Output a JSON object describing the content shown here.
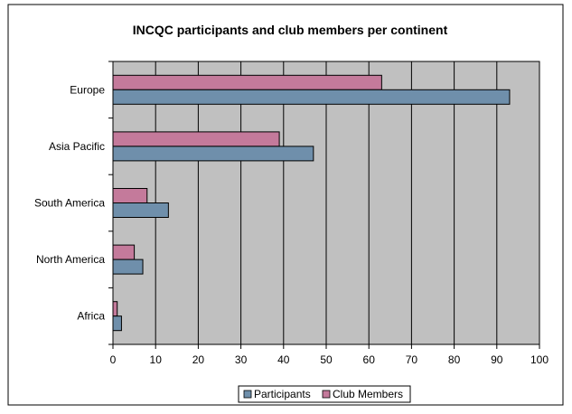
{
  "chart_data": {
    "type": "bar",
    "orientation": "horizontal",
    "title": "INCQC participants and club members per continent",
    "xlabel": "",
    "ylabel": "",
    "categories": [
      "Europe",
      "Asia Pacific",
      "South America",
      "North America",
      "Africa"
    ],
    "series": [
      {
        "name": "Participants",
        "color": "#6f8fab",
        "values": [
          93,
          47,
          13,
          7,
          2
        ]
      },
      {
        "name": "Club Members",
        "color": "#c47a9b",
        "values": [
          63,
          39,
          8,
          5,
          1
        ]
      }
    ],
    "xlim": [
      0,
      100
    ],
    "xticks": [
      "0",
      "10",
      "20",
      "30",
      "40",
      "50",
      "60",
      "70",
      "80",
      "90",
      "100"
    ],
    "grid": "vertical",
    "legend_position": "bottom",
    "plot_background": "#c0c0c0"
  }
}
